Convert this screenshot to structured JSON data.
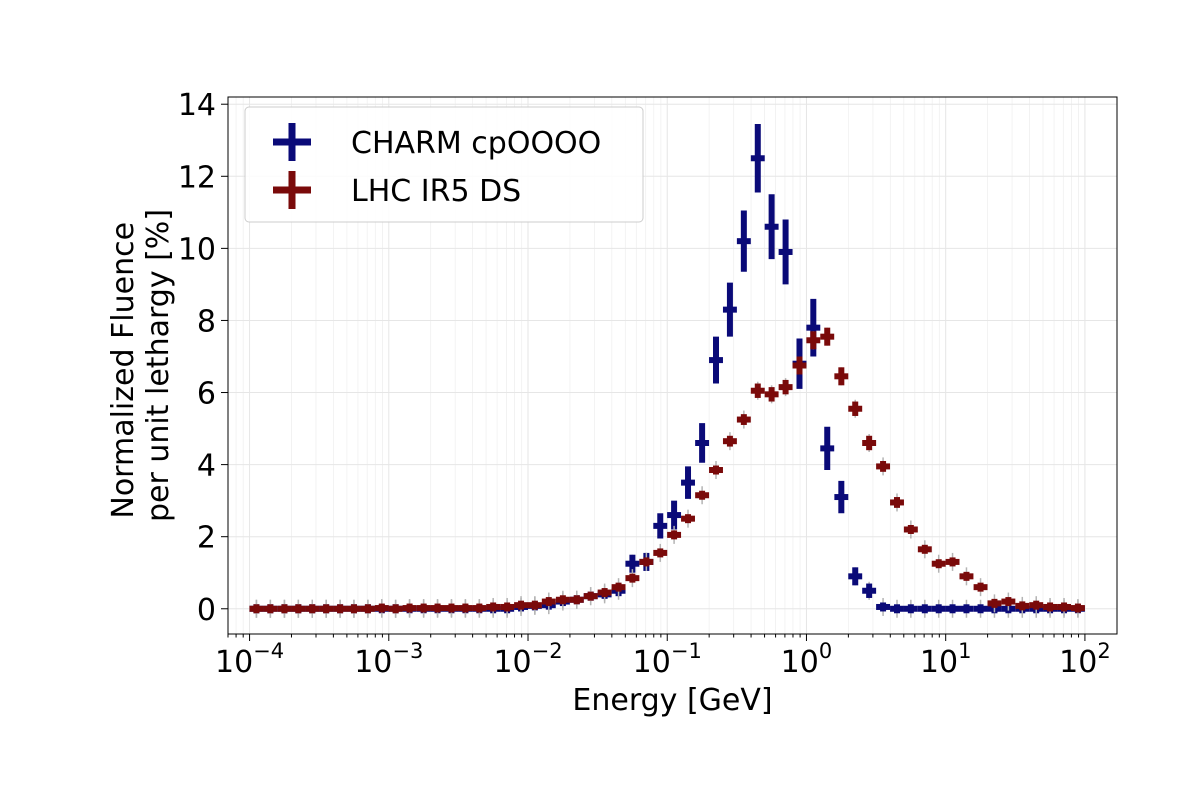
{
  "chart_data": {
    "type": "scatter",
    "xlabel": "Energy [GeV]",
    "ylabel_lines": [
      "Normalized Fluence",
      "per unit lethargy [%]"
    ],
    "xscale": "log",
    "xlim": [
      7e-05,
      170
    ],
    "ylim": [
      -0.7,
      14.2
    ],
    "x_ticks": [
      {
        "value": 0.0001,
        "base": "10",
        "exp": "−4"
      },
      {
        "value": 0.001,
        "base": "10",
        "exp": "−3"
      },
      {
        "value": 0.01,
        "base": "10",
        "exp": "−2"
      },
      {
        "value": 0.1,
        "base": "10",
        "exp": "−1"
      },
      {
        "value": 1,
        "base": "10",
        "exp": "0"
      },
      {
        "value": 10,
        "base": "10",
        "exp": "1"
      },
      {
        "value": 100,
        "base": "10",
        "exp": "2"
      }
    ],
    "y_ticks": [
      "0",
      "2",
      "4",
      "6",
      "8",
      "10",
      "12",
      "14"
    ],
    "grid": true,
    "legend": "top-left",
    "series": [
      {
        "name": "CHARM cpOOOO",
        "color": "#0a0a78",
        "x": [
          0.000112,
          0.000141,
          0.000178,
          0.000224,
          0.000282,
          0.000355,
          0.000447,
          0.000562,
          0.000708,
          0.000891,
          0.00112,
          0.00141,
          0.00178,
          0.00224,
          0.00282,
          0.00355,
          0.00447,
          0.00562,
          0.00708,
          0.00891,
          0.0112,
          0.0141,
          0.0178,
          0.0224,
          0.0282,
          0.0355,
          0.0447,
          0.0562,
          0.0708,
          0.0891,
          0.112,
          0.141,
          0.178,
          0.224,
          0.282,
          0.355,
          0.447,
          0.562,
          0.708,
          0.891,
          1.12,
          1.41,
          1.78,
          2.24,
          2.82,
          3.55,
          4.47,
          5.62,
          7.08,
          8.91,
          11.2,
          14.1,
          17.8,
          22.4,
          28.2,
          35.5,
          44.7,
          56.2,
          70.8,
          89.1
        ],
        "y": [
          0,
          0,
          0,
          0,
          0,
          0,
          0,
          0,
          0,
          0,
          0,
          0,
          0,
          0,
          0,
          0,
          0,
          0,
          0,
          0.05,
          0.08,
          0.1,
          0.2,
          0.25,
          0.35,
          0.4,
          0.5,
          1.25,
          1.3,
          2.3,
          2.6,
          3.5,
          4.6,
          6.9,
          8.3,
          10.2,
          12.5,
          10.6,
          9.9,
          6.8,
          7.8,
          4.45,
          3.1,
          0.9,
          0.5,
          0.05,
          0,
          0,
          0,
          0,
          0,
          0,
          0,
          0,
          0,
          0,
          0,
          0,
          0,
          0
        ],
        "yerr": [
          0,
          0,
          0,
          0,
          0,
          0,
          0,
          0,
          0,
          0,
          0,
          0,
          0,
          0,
          0,
          0,
          0,
          0,
          0,
          0.05,
          0.05,
          0.05,
          0.05,
          0.1,
          0.1,
          0.1,
          0.15,
          0.25,
          0.25,
          0.35,
          0.4,
          0.45,
          0.55,
          0.65,
          0.75,
          0.85,
          0.95,
          0.9,
          0.9,
          0.7,
          0.8,
          0.6,
          0.45,
          0.25,
          0.2,
          0.05,
          0,
          0,
          0,
          0,
          0,
          0,
          0,
          0,
          0,
          0,
          0,
          0,
          0,
          0
        ]
      },
      {
        "name": "LHC IR5 DS",
        "color": "#7a0a0a",
        "x": [
          0.000112,
          0.000141,
          0.000178,
          0.000224,
          0.000282,
          0.000355,
          0.000447,
          0.000562,
          0.000708,
          0.000891,
          0.00112,
          0.00141,
          0.00178,
          0.00224,
          0.00282,
          0.00355,
          0.00447,
          0.00562,
          0.00708,
          0.00891,
          0.0112,
          0.0141,
          0.0178,
          0.0224,
          0.0282,
          0.0355,
          0.0447,
          0.0562,
          0.0708,
          0.0891,
          0.112,
          0.141,
          0.178,
          0.224,
          0.282,
          0.355,
          0.447,
          0.562,
          0.708,
          0.891,
          1.12,
          1.41,
          1.78,
          2.24,
          2.82,
          3.55,
          4.47,
          5.62,
          7.08,
          8.91,
          11.2,
          14.1,
          17.8,
          22.4,
          28.2,
          35.5,
          44.7,
          56.2,
          70.8,
          89.1
        ],
        "y": [
          0,
          0,
          0,
          0,
          0,
          0,
          0,
          0,
          0,
          0.02,
          0,
          0.02,
          0.02,
          0.02,
          0.02,
          0.02,
          0.02,
          0.05,
          0.05,
          0.1,
          0.1,
          0.2,
          0.25,
          0.25,
          0.35,
          0.45,
          0.6,
          0.85,
          1.3,
          1.55,
          2.05,
          2.5,
          3.15,
          3.85,
          4.65,
          5.25,
          6.05,
          5.95,
          6.15,
          6.75,
          7.45,
          7.55,
          6.45,
          5.55,
          4.6,
          3.95,
          2.95,
          2.2,
          1.65,
          1.25,
          1.3,
          0.9,
          0.6,
          0.15,
          0.2,
          0.08,
          0.1,
          0.05,
          0.05,
          0.02
        ],
        "yerr": [
          0,
          0,
          0,
          0,
          0,
          0,
          0,
          0,
          0,
          0,
          0,
          0,
          0,
          0,
          0,
          0,
          0,
          0,
          0,
          0,
          0,
          0,
          0,
          0,
          0,
          0,
          0.05,
          0.05,
          0.08,
          0.08,
          0.1,
          0.1,
          0.12,
          0.12,
          0.15,
          0.15,
          0.2,
          0.2,
          0.2,
          0.25,
          0.25,
          0.25,
          0.25,
          0.2,
          0.2,
          0.15,
          0.15,
          0.12,
          0.1,
          0.08,
          0.08,
          0.06,
          0.05,
          0.03,
          0.03,
          0.02,
          0.02,
          0.02,
          0.02,
          0
        ]
      }
    ]
  }
}
